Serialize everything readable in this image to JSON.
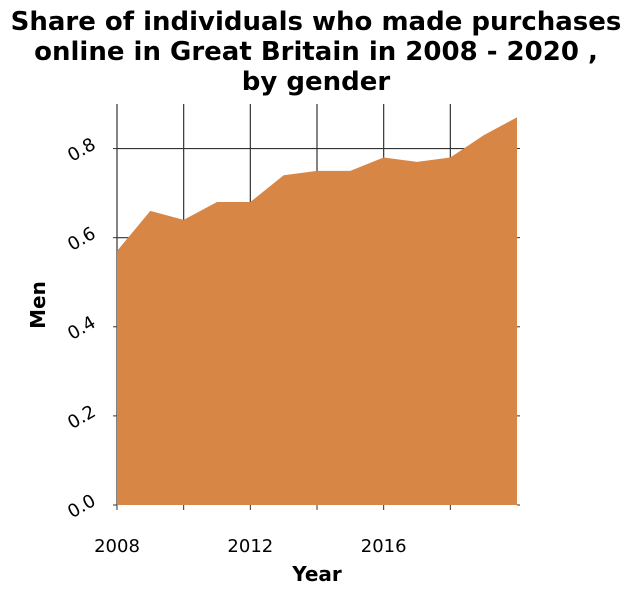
{
  "chart_data": {
    "type": "area",
    "title_lines": [
      "Share of individuals who made purchases",
      "online in Great Britain in 2008 - 2020 ,",
      "by gender"
    ],
    "xlabel": "Year",
    "ylabel": "Men",
    "x": [
      2008,
      2009,
      2010,
      2011,
      2012,
      2013,
      2014,
      2015,
      2016,
      2017,
      2018,
      2019,
      2020
    ],
    "values": [
      0.57,
      0.66,
      0.64,
      0.68,
      0.68,
      0.74,
      0.75,
      0.75,
      0.78,
      0.77,
      0.78,
      0.83,
      0.87
    ],
    "xlim": [
      2008,
      2020
    ],
    "ylim": [
      0,
      0.9
    ],
    "x_ticks": [
      2008,
      2012,
      2016
    ],
    "x_tick_labels": [
      "2008",
      "2012",
      "2016"
    ],
    "x_gridlines": [
      2008,
      2010,
      2012,
      2014,
      2016,
      2018
    ],
    "y_ticks": [
      0.0,
      0.2,
      0.4,
      0.6,
      0.8
    ],
    "y_tick_labels": [
      "0.0",
      "0.2",
      "0.4",
      "0.6",
      "0.8"
    ],
    "grid": true,
    "fill_color": "#d88646",
    "grid_color": "#333333"
  }
}
